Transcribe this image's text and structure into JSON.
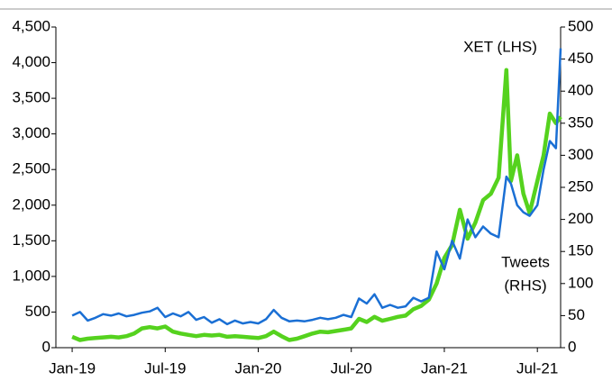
{
  "chart_data": {
    "type": "line",
    "x": [
      0,
      0.5,
      1,
      1.5,
      2,
      2.5,
      3,
      3.5,
      4,
      4.5,
      5,
      5.5,
      6,
      6.5,
      7,
      7.5,
      8,
      8.5,
      9,
      9.5,
      10,
      10.5,
      11,
      11.5,
      12,
      12.5,
      13,
      13.5,
      14,
      14.5,
      15,
      15.5,
      16,
      16.5,
      17,
      17.5,
      18,
      18.5,
      19,
      19.5,
      20,
      20.5,
      21,
      21.5,
      22,
      22.5,
      23,
      23.5,
      24,
      24.5,
      25,
      25.5,
      26,
      26.5,
      27,
      27.5,
      28,
      28.3,
      28.7,
      29.1,
      29.5,
      30,
      30.4,
      30.8,
      31.2,
      31.5
    ],
    "series": [
      {
        "name": "XET (LHS)",
        "color": "#1a6fd4",
        "axis": "y",
        "values": [
          450,
          500,
          380,
          420,
          470,
          450,
          480,
          440,
          460,
          490,
          510,
          560,
          430,
          480,
          440,
          500,
          390,
          430,
          350,
          400,
          330,
          380,
          340,
          360,
          340,
          400,
          530,
          420,
          370,
          380,
          370,
          390,
          420,
          400,
          420,
          460,
          430,
          690,
          620,
          750,
          560,
          600,
          560,
          580,
          700,
          650,
          700,
          1350,
          1100,
          1500,
          1250,
          1800,
          1550,
          1700,
          1600,
          1550,
          2400,
          2300,
          2000,
          1900,
          1850,
          2000,
          2500,
          2900,
          2800,
          4200
        ]
      },
      {
        "name": "Tweets (RHS)",
        "color": "#55d21e",
        "axis": "y2",
        "values": [
          17,
          12,
          14,
          15,
          16,
          17,
          16,
          18,
          22,
          30,
          32,
          30,
          33,
          25,
          22,
          20,
          18,
          20,
          19,
          20,
          17,
          18,
          17,
          16,
          15,
          18,
          25,
          18,
          12,
          14,
          18,
          22,
          25,
          24,
          26,
          28,
          30,
          45,
          40,
          48,
          42,
          45,
          48,
          50,
          60,
          65,
          75,
          100,
          140,
          160,
          215,
          170,
          195,
          230,
          240,
          265,
          433,
          260,
          300,
          240,
          210,
          260,
          300,
          365,
          350,
          360
        ]
      }
    ],
    "annotations": [
      "XET (LHS)",
      "Tweets",
      "(RHS)"
    ],
    "xlim": [
      -1.05,
      31.5
    ],
    "xticks": [
      {
        "value": 0,
        "label": "Jan-19"
      },
      {
        "value": 6,
        "label": "Jul-19"
      },
      {
        "value": 12,
        "label": "Jan-20"
      },
      {
        "value": 18,
        "label": "Jul-20"
      },
      {
        "value": 24,
        "label": "Jan-21"
      },
      {
        "value": 30,
        "label": "Jul-21"
      }
    ],
    "ylim": [
      0,
      4500
    ],
    "yticks": [
      0,
      500,
      {
        "value": 1000,
        "label": "1,000"
      },
      {
        "value": 1500,
        "label": "1,500"
      },
      {
        "value": 2000,
        "label": "2,000"
      },
      {
        "value": 2500,
        "label": "2,500"
      },
      {
        "value": 3000,
        "label": "3,000"
      },
      {
        "value": 3500,
        "label": "3,500"
      },
      {
        "value": 4000,
        "label": "4,000"
      },
      {
        "value": 4500,
        "label": "4,500"
      }
    ],
    "y2lim": [
      0,
      500
    ],
    "y2ticks": [
      0,
      50,
      100,
      150,
      200,
      250,
      300,
      350,
      400,
      450,
      500
    ]
  }
}
